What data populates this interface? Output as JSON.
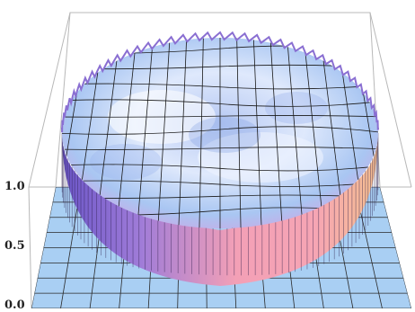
{
  "chart_data": {
    "type": "surface",
    "title": "",
    "xlabel": "",
    "ylabel": "",
    "zlabel": "",
    "zlim": [
      0.0,
      1.0
    ],
    "z_ticks": [
      "0.0",
      "0.5",
      "1.0"
    ],
    "floor_value": 0.0,
    "plateau_value": 1.0,
    "mesh": "on",
    "box": "on",
    "colors": {
      "floor": "#a9cff3",
      "surface_light": "#f2f6ff",
      "surface_blue": "#9dbbf1",
      "surface_purple": "#8c77d6",
      "wall_pink": "#f6a7b8",
      "wall_orange": "#f6b98a",
      "wall_purple": "#7a5ad0",
      "mesh": "#111111"
    }
  }
}
